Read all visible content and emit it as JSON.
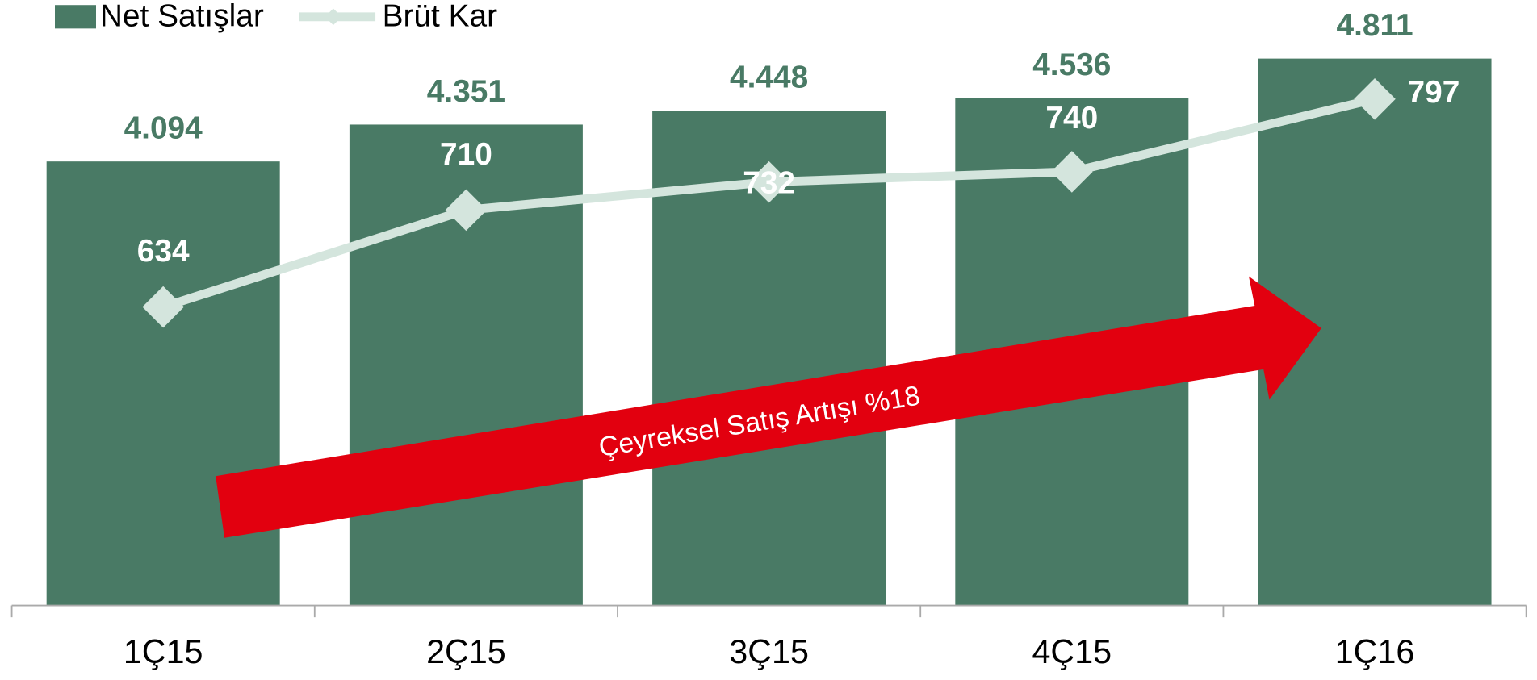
{
  "chart_data": {
    "type": "bar-line",
    "categories": [
      "1Ç15",
      "2Ç15",
      "3Ç15",
      "4Ç15",
      "1Ç16"
    ],
    "series": [
      {
        "name": "Net Satışlar",
        "type": "bar",
        "color": "#497a65",
        "values": [
          4094,
          4351,
          4448,
          4536,
          4811
        ],
        "value_labels": [
          "4.094",
          "4.351",
          "4.448",
          "4.536",
          "4.811"
        ]
      },
      {
        "name": "Brüt Kar",
        "type": "line",
        "color": "#d4e5dd",
        "axis": "y2",
        "values": [
          634,
          710,
          732,
          740,
          797
        ]
      }
    ],
    "ylim": [
      1000,
      5000
    ],
    "y2lim": [
      400,
      850
    ],
    "annotation": "Çeyreksel Satış Artışı %18",
    "legend": "top-left"
  }
}
